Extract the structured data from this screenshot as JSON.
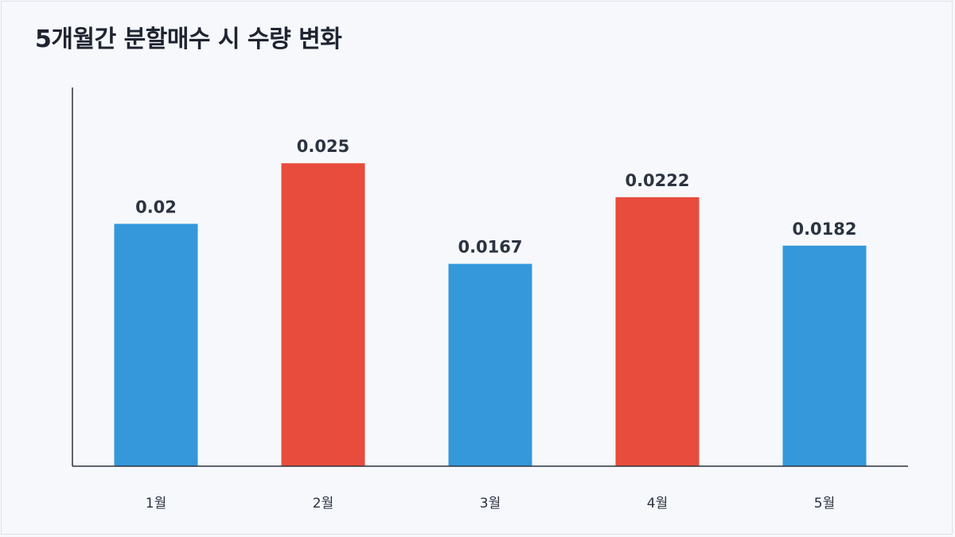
{
  "chart_data": {
    "type": "bar",
    "title": "5개월간 분할매수 시 수량 변화",
    "xlabel": "",
    "ylabel": "",
    "categories": [
      "1월",
      "2월",
      "3월",
      "4월",
      "5월"
    ],
    "values": [
      0.02,
      0.025,
      0.0167,
      0.0222,
      0.0182
    ],
    "value_labels": [
      "0.02",
      "0.025",
      "0.0167",
      "0.0222",
      "0.0182"
    ],
    "ylim": [
      0,
      0.03125
    ],
    "grid": false,
    "legend": "none",
    "colors": [
      "#3498db",
      "#e74c3c",
      "#3498db",
      "#e74c3c",
      "#3498db"
    ],
    "axis_color": "#2c3340"
  }
}
